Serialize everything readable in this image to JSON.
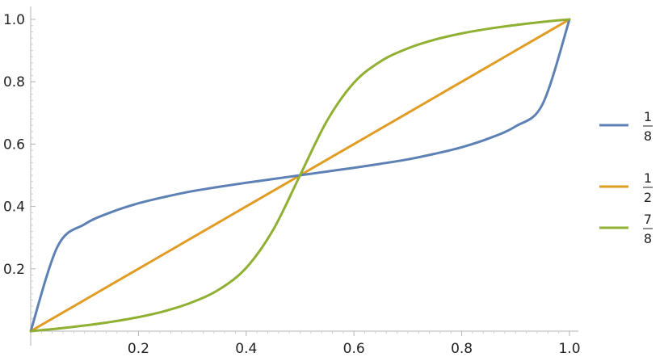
{
  "chart_data": {
    "type": "line",
    "title": "",
    "xlabel": "",
    "ylabel": "",
    "xlim": [
      0,
      1
    ],
    "ylim": [
      0,
      1
    ],
    "x_ticks": [
      "0.2",
      "0.4",
      "0.6",
      "0.8",
      "1.0"
    ],
    "y_ticks": [
      "0.2",
      "0.4",
      "0.6",
      "0.8",
      "1.0"
    ],
    "grid": false,
    "legend_position": "right",
    "x": [
      0,
      0.05,
      0.1,
      0.15,
      0.2,
      0.25,
      0.3,
      0.35,
      0.4,
      0.45,
      0.5,
      0.55,
      0.6,
      0.65,
      0.7,
      0.75,
      0.8,
      0.85,
      0.9,
      0.95,
      1.0
    ],
    "series": [
      {
        "name_numerator": "1",
        "name_denominator": "8",
        "color": "#5e81b5",
        "values": [
          0,
          0.272,
          0.343,
          0.382,
          0.41,
          0.431,
          0.449,
          0.463,
          0.476,
          0.488,
          0.5,
          0.512,
          0.524,
          0.537,
          0.551,
          0.569,
          0.59,
          0.618,
          0.657,
          0.728,
          1.0
        ]
      },
      {
        "name_numerator": "1",
        "name_denominator": "2",
        "color": "#e19c24",
        "values": [
          0,
          0.05,
          0.1,
          0.15,
          0.2,
          0.25,
          0.3,
          0.35,
          0.4,
          0.45,
          0.5,
          0.55,
          0.6,
          0.65,
          0.7,
          0.75,
          0.8,
          0.85,
          0.9,
          0.95,
          1.0
        ]
      },
      {
        "name_numerator": "7",
        "name_denominator": "8",
        "color": "#8fb032",
        "values": [
          0,
          0.008,
          0.018,
          0.03,
          0.045,
          0.065,
          0.093,
          0.134,
          0.203,
          0.325,
          0.5,
          0.675,
          0.797,
          0.866,
          0.907,
          0.935,
          0.955,
          0.97,
          0.982,
          0.992,
          1.0
        ]
      }
    ]
  }
}
